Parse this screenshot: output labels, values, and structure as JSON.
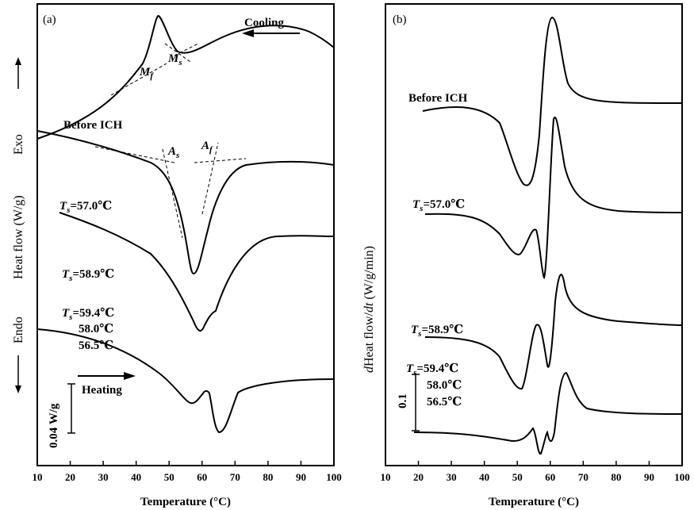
{
  "chart_data": [
    {
      "type": "line",
      "panel_label": "(a)",
      "xlabel": "Temperature (°C)",
      "ylabel": "Heat flow (W/g)",
      "y_top_label": "Exo",
      "y_bottom_label": "Endo",
      "xlim": [
        10,
        100
      ],
      "x_ticks": [
        "10",
        "20",
        "30",
        "40",
        "50",
        "60",
        "70",
        "80",
        "90",
        "100"
      ],
      "scale_bar_label": "0.04 W/g",
      "annotations": {
        "cooling": "Cooling",
        "heating": "Heating",
        "before_ich": "Before ICH",
        "ts_570": "=57.0℃",
        "ts_589": "=58.9℃",
        "ts_594": "=59.4℃",
        "t_580": "58.0℃",
        "t_565": "56.5℃",
        "ts_symbol": "T",
        "ts_sub": "s",
        "mf": "M",
        "mf_sub": "f",
        "ms": "M",
        "ms_sub": "s",
        "as": "A",
        "as_sub": "s",
        "af": "A",
        "af_sub": "f"
      },
      "series": [
        {
          "label_ref": "cooling",
          "x": [
            10,
            20,
            30,
            40,
            45,
            48,
            50,
            53,
            56,
            60,
            70,
            80,
            90,
            100
          ],
          "y": [
            0.0,
            0.05,
            0.13,
            0.26,
            0.42,
            0.58,
            0.44,
            0.26,
            0.28,
            0.3,
            0.36,
            0.43,
            0.44,
            0.36
          ]
        },
        {
          "label_ref": "before_ich",
          "x": [
            10,
            20,
            30,
            40,
            47,
            52,
            55,
            57,
            59,
            62,
            66,
            70,
            80,
            90,
            100
          ],
          "y": [
            0.0,
            -0.04,
            -0.08,
            -0.14,
            -0.25,
            -0.52,
            -0.85,
            -0.98,
            -0.78,
            -0.4,
            -0.28,
            -0.24,
            -0.23,
            -0.22,
            -0.22
          ]
        },
        {
          "label_ref": "ts_570",
          "x": [
            21,
            30,
            40,
            50,
            55,
            58,
            59,
            60,
            61,
            63,
            66,
            70,
            80,
            90,
            100
          ],
          "y": [
            0.0,
            -0.06,
            -0.12,
            -0.26,
            -0.45,
            -0.62,
            -0.74,
            -0.77,
            -0.68,
            -0.55,
            -0.42,
            -0.36,
            -0.34,
            -0.34,
            -0.34
          ]
        },
        {
          "label_ref": "ts_589",
          "x": [
            10,
            20,
            30,
            40,
            50,
            54,
            57,
            59,
            60,
            61,
            62,
            64,
            66,
            70,
            80,
            90,
            100
          ],
          "y": [
            0.0,
            -0.06,
            -0.13,
            -0.21,
            -0.35,
            -0.52,
            -0.72,
            -0.78,
            -0.74,
            -0.72,
            -0.8,
            -0.95,
            -0.88,
            -0.7,
            -0.6,
            -0.58,
            -0.57
          ]
        }
      ]
    },
    {
      "type": "line",
      "panel_label": "(b)",
      "xlabel": "Temperature (°C)",
      "ylabel": "dHeat flow/dt (W/g/min)",
      "ylabel_italic": "d",
      "ylabel_main": "Heat flow/",
      "ylabel_italic2": "dt",
      "ylabel_units": " (W/g/min)",
      "xlim": [
        10,
        100
      ],
      "x_ticks": [
        "10",
        "20",
        "30",
        "40",
        "50",
        "60",
        "70",
        "80",
        "90",
        "100"
      ],
      "scale_bar_label": "0.1",
      "annotations": {
        "before_ich": "Before ICH",
        "ts_570": "=57.0℃",
        "ts_589": "=58.9℃",
        "ts_594": "=59.4℃",
        "t_580": "58.0℃",
        "t_565": "56.5℃",
        "ts_symbol": "T",
        "ts_sub": "s"
      },
      "series": [
        {
          "label_ref": "before_ich",
          "x": [
            22,
            30,
            40,
            48,
            52,
            55,
            57,
            58.5,
            60,
            61,
            63,
            66,
            70,
            80,
            90,
            100
          ],
          "y": [
            0.0,
            0.02,
            0.0,
            -0.15,
            -0.45,
            -0.64,
            -0.5,
            0.1,
            0.52,
            0.55,
            0.45,
            0.12,
            0.05,
            0.02,
            0.01,
            0.01
          ]
        },
        {
          "label_ref": "ts_570",
          "x": [
            22,
            30,
            40,
            48,
            52,
            55,
            57,
            58.5,
            59.7,
            60.5,
            61.5,
            62.5,
            64,
            66,
            70,
            80,
            90,
            100
          ],
          "y": [
            0.0,
            0.0,
            -0.03,
            -0.15,
            -0.35,
            -0.3,
            -0.1,
            -0.05,
            -0.55,
            -0.2,
            0.6,
            0.5,
            0.2,
            0.08,
            0.03,
            0.02,
            0.01,
            0.01
          ]
        },
        {
          "label_ref": "ts_589",
          "x": [
            22,
            30,
            40,
            48,
            52,
            55,
            57,
            59,
            60,
            61.5,
            62.5,
            64,
            66,
            70,
            80,
            90,
            100
          ],
          "y": [
            0.0,
            0.0,
            -0.05,
            -0.17,
            -0.42,
            -0.55,
            -0.1,
            0.4,
            0.35,
            -0.35,
            0.08,
            0.32,
            0.2,
            0.05,
            0.01,
            0.0,
            0.0
          ]
        }
      ]
    }
  ]
}
